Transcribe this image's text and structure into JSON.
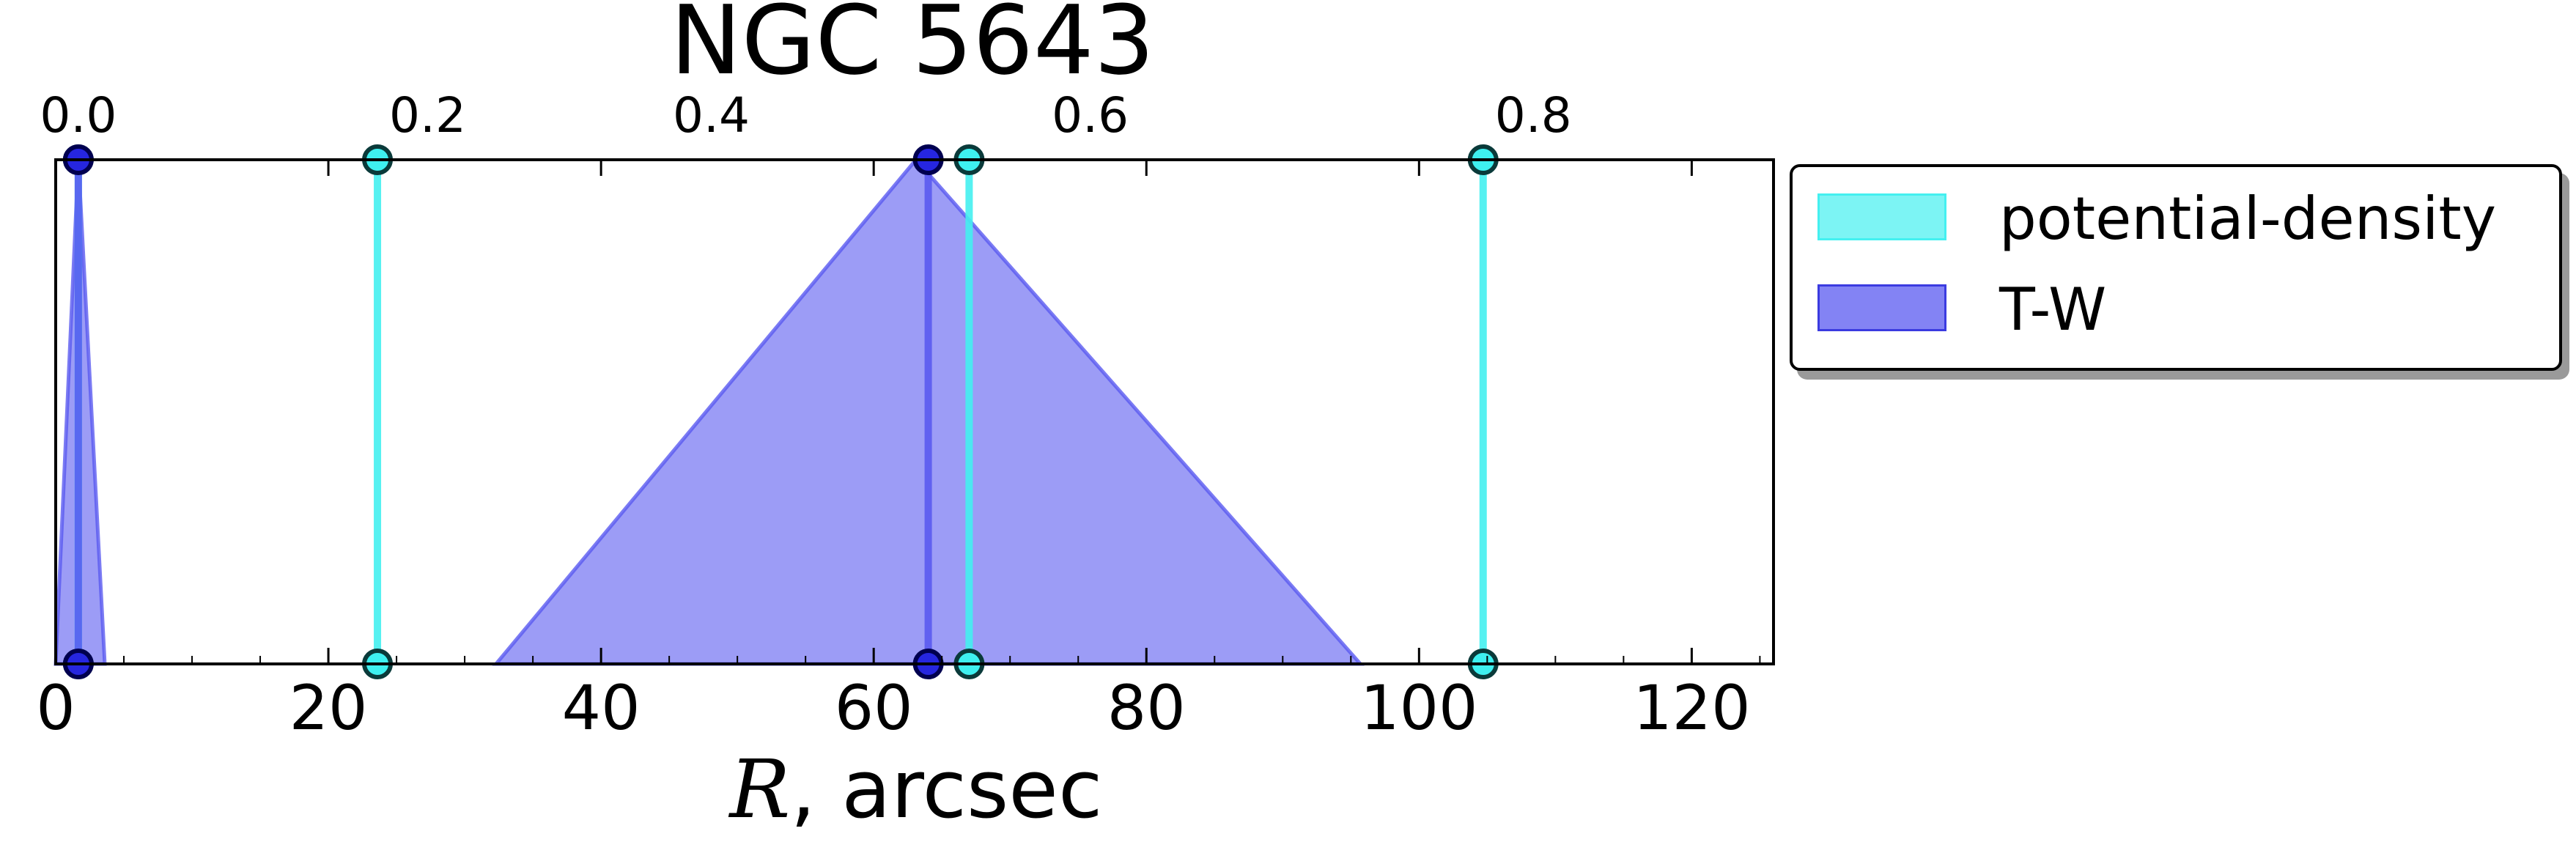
{
  "chart_data": {
    "type": "area",
    "title": "NGC 5643",
    "xlabel_italic": "R",
    "xlabel_rest": ", arcsec",
    "xlim": [
      0,
      126
    ],
    "ylim": [
      0,
      1
    ],
    "bottom_ticks": [
      0,
      20,
      40,
      60,
      80,
      100,
      120
    ],
    "top_ticks": [
      "0.0",
      "0.2",
      "0.4",
      "0.6",
      "0.8"
    ],
    "top_tick_positions": [
      1.66,
      23.6,
      44.4,
      72.2,
      104.7
    ],
    "grid": false,
    "legend_placement": "outside right",
    "series": [
      {
        "name": "potential-density",
        "color": "#44f0f0",
        "lines": [
          1.66,
          23.6,
          67.0,
          104.7
        ]
      },
      {
        "name": "T-W",
        "color": "#5a5af0",
        "lines": [
          1.66,
          64.0
        ],
        "triangles": [
          {
            "left": 0.0,
            "peak": 1.66,
            "right": 3.6
          },
          {
            "left": 32.3,
            "peak": 63.1,
            "right": 95.7
          }
        ]
      }
    ]
  },
  "legend": {
    "items": [
      {
        "label": "potential-density",
        "color": "#44f0f0"
      },
      {
        "label": "T-W",
        "color": "#5a5af0"
      }
    ]
  }
}
